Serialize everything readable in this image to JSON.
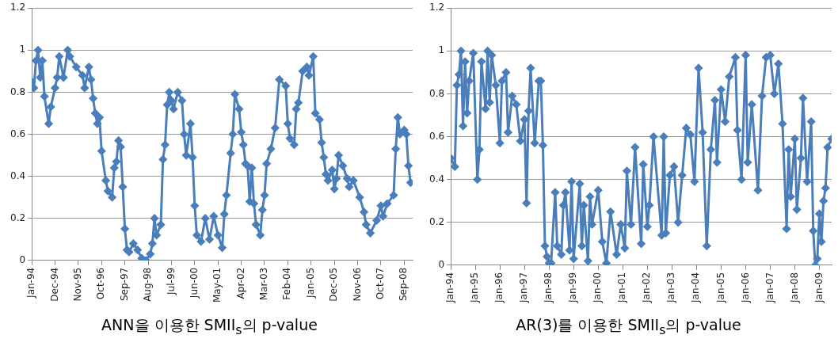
{
  "chart_data": [
    {
      "type": "line",
      "title": "ANN을 이용한 SMII$_{s}$의 p-value",
      "marker": "diamond",
      "grid": "y",
      "line_style": "solid",
      "ylim": [
        0,
        1.2
      ],
      "yticks": [
        0,
        0.2,
        0.4,
        0.6,
        0.8,
        1,
        1.2
      ],
      "xlim": [
        "1994-01",
        "2009-01"
      ],
      "xticks": [
        {
          "value": "1994-01",
          "label": "Jan-94"
        },
        {
          "value": "1994-12",
          "label": "Dec-94"
        },
        {
          "value": "1995-11",
          "label": "Nov-95"
        },
        {
          "value": "1996-10",
          "label": "Oct-96"
        },
        {
          "value": "1997-09",
          "label": "Sep-97"
        },
        {
          "value": "1998-08",
          "label": "Aug-98"
        },
        {
          "value": "1999-07",
          "label": "Jul-99"
        },
        {
          "value": "2000-06",
          "label": "Jun-00"
        },
        {
          "value": "2001-05",
          "label": "May-01"
        },
        {
          "value": "2002-04",
          "label": "Apr-02"
        },
        {
          "value": "2003-03",
          "label": "Mar-03"
        },
        {
          "value": "2004-02",
          "label": "Feb-04"
        },
        {
          "value": "2005-01",
          "label": "Jan-05"
        },
        {
          "value": "2005-12",
          "label": "Dec-05"
        },
        {
          "value": "2006-11",
          "label": "Nov-06"
        },
        {
          "value": "2007-10",
          "label": "Oct-07"
        },
        {
          "value": "2008-09",
          "label": "Sep-08"
        }
      ],
      "series": [
        {
          "color": "#4a7ebb",
          "x": [
            "1994-01",
            "1994-02",
            "1994-03",
            "1994-04",
            "1994-05",
            "1994-06",
            "1994-07",
            "1994-09",
            "1994-10",
            "1994-12",
            "1995-01",
            "1995-02",
            "1995-04",
            "1995-06",
            "1995-07",
            "1995-10",
            "1996-01",
            "1996-02",
            "1996-04",
            "1996-05",
            "1996-06",
            "1996-07",
            "1996-08",
            "1996-09",
            "1996-10",
            "1996-12",
            "1997-01",
            "1997-03",
            "1997-04",
            "1997-05",
            "1997-06",
            "1997-07",
            "1997-08",
            "1997-09",
            "1997-10",
            "1997-11",
            "1998-01",
            "1998-03",
            "1998-05",
            "1998-07",
            "1998-09",
            "1998-10",
            "1998-11",
            "1998-12",
            "1999-02",
            "1999-03",
            "1999-04",
            "1999-05",
            "1999-06",
            "1999-07",
            "1999-08",
            "1999-10",
            "1999-12",
            "2000-01",
            "2000-02",
            "2000-04",
            "2000-05",
            "2000-06",
            "2000-07",
            "2000-09",
            "2000-11",
            "2001-01",
            "2001-03",
            "2001-05",
            "2001-07",
            "2001-08",
            "2001-09",
            "2001-11",
            "2001-12",
            "2002-01",
            "2002-03",
            "2002-04",
            "2002-05",
            "2002-06",
            "2002-07",
            "2002-08",
            "2002-09",
            "2002-10",
            "2002-11",
            "2003-01",
            "2003-02",
            "2003-03",
            "2003-04",
            "2003-06",
            "2003-08",
            "2003-10",
            "2004-01",
            "2004-02",
            "2004-03",
            "2004-05",
            "2004-06",
            "2004-07",
            "2004-09",
            "2004-11",
            "2004-12",
            "2005-02",
            "2005-03",
            "2005-05",
            "2005-06",
            "2005-07",
            "2005-08",
            "2005-09",
            "2005-11",
            "2005-12",
            "2006-01",
            "2006-02",
            "2006-04",
            "2006-06",
            "2006-07",
            "2006-09",
            "2006-12",
            "2007-02",
            "2007-03",
            "2007-05",
            "2007-08",
            "2007-10",
            "2007-11",
            "2008-01",
            "2008-04",
            "2008-05",
            "2008-06",
            "2008-07",
            "2008-09",
            "2008-10",
            "2008-11",
            "2008-12"
          ],
          "values": [
            0.85,
            0.82,
            0.95,
            1.0,
            0.87,
            0.95,
            0.78,
            0.65,
            0.73,
            0.82,
            0.87,
            0.97,
            0.87,
            1.0,
            0.97,
            0.92,
            0.88,
            0.82,
            0.92,
            0.86,
            0.77,
            0.7,
            0.65,
            0.68,
            0.52,
            0.38,
            0.33,
            0.3,
            0.44,
            0.47,
            0.57,
            0.54,
            0.35,
            0.15,
            0.05,
            0.04,
            0.08,
            0.05,
            0.01,
            0.0,
            0.03,
            0.08,
            0.2,
            0.12,
            0.17,
            0.48,
            0.55,
            0.74,
            0.8,
            0.76,
            0.72,
            0.8,
            0.76,
            0.6,
            0.5,
            0.65,
            0.49,
            0.26,
            0.12,
            0.09,
            0.2,
            0.1,
            0.21,
            0.12,
            0.06,
            0.22,
            0.31,
            0.51,
            0.6,
            0.79,
            0.72,
            0.61,
            0.55,
            0.46,
            0.45,
            0.28,
            0.44,
            0.27,
            0.17,
            0.12,
            0.24,
            0.31,
            0.46,
            0.53,
            0.63,
            0.86,
            0.83,
            0.65,
            0.58,
            0.55,
            0.72,
            0.75,
            0.9,
            0.92,
            0.88,
            0.97,
            0.7,
            0.67,
            0.56,
            0.49,
            0.41,
            0.38,
            0.43,
            0.34,
            0.39,
            0.5,
            0.45,
            0.39,
            0.35,
            0.38,
            0.3,
            0.23,
            0.17,
            0.13,
            0.19,
            0.26,
            0.21,
            0.27,
            0.31,
            0.53,
            0.68,
            0.6,
            0.62,
            0.6,
            0.45,
            0.37
          ]
        }
      ]
    },
    {
      "type": "line",
      "title": "AR(3)를 이용한 SMII$_{s}$의 p-value",
      "marker": "diamond",
      "grid": "y",
      "line_style": "solid",
      "ylim": [
        0,
        1.2
      ],
      "yticks": [
        0,
        0.2,
        0.4,
        0.6,
        0.8,
        1,
        1.2
      ],
      "xlim": [
        "1994-01",
        "2009-07"
      ],
      "xticks": [
        {
          "value": "1994-01",
          "label": "Jan-94"
        },
        {
          "value": "1995-01",
          "label": "Jan-95"
        },
        {
          "value": "1996-01",
          "label": "Jan-96"
        },
        {
          "value": "1997-01",
          "label": "Jan-97"
        },
        {
          "value": "1998-01",
          "label": "Jan-98"
        },
        {
          "value": "1999-01",
          "label": "Jan-99"
        },
        {
          "value": "2000-01",
          "label": "Jan-00"
        },
        {
          "value": "2001-01",
          "label": "Jan-01"
        },
        {
          "value": "2002-01",
          "label": "Jan-02"
        },
        {
          "value": "2003-01",
          "label": "Jan-03"
        },
        {
          "value": "2004-01",
          "label": "Jan-04"
        },
        {
          "value": "2005-01",
          "label": "Jan-05"
        },
        {
          "value": "2006-01",
          "label": "Jan-06"
        },
        {
          "value": "2007-01",
          "label": "Jan-07"
        },
        {
          "value": "2008-01",
          "label": "Jan-08"
        },
        {
          "value": "2009-01",
          "label": "Jan-09"
        }
      ],
      "series": [
        {
          "color": "#4a7ebb",
          "x": [
            "1994-01",
            "1994-03",
            "1994-04",
            "1994-05",
            "1994-06",
            "1994-07",
            "1994-08",
            "1994-09",
            "1994-10",
            "1994-12",
            "1995-02",
            "1995-03",
            "1995-04",
            "1995-06",
            "1995-07",
            "1995-08",
            "1995-09",
            "1995-11",
            "1996-01",
            "1996-02",
            "1996-04",
            "1996-05",
            "1996-07",
            "1996-09",
            "1996-11",
            "1997-01",
            "1997-02",
            "1997-03",
            "1997-04",
            "1997-06",
            "1997-08",
            "1997-09",
            "1997-10",
            "1997-11",
            "1997-12",
            "1998-01",
            "1998-02",
            "1998-04",
            "1998-05",
            "1998-07",
            "1998-08",
            "1998-09",
            "1998-11",
            "1998-12",
            "1999-01",
            "1999-04",
            "1999-05",
            "1999-06",
            "1999-08",
            "1999-09",
            "1999-10",
            "2000-01",
            "2000-03",
            "2000-05",
            "2000-07",
            "2000-10",
            "2000-12",
            "2001-02",
            "2001-03",
            "2001-05",
            "2001-07",
            "2001-10",
            "2001-11",
            "2002-01",
            "2002-02",
            "2002-04",
            "2002-08",
            "2002-09",
            "2002-10",
            "2002-12",
            "2003-02",
            "2003-04",
            "2003-06",
            "2003-08",
            "2003-10",
            "2003-12",
            "2004-02",
            "2004-04",
            "2004-06",
            "2004-08",
            "2004-10",
            "2004-11",
            "2005-01",
            "2005-03",
            "2005-05",
            "2005-08",
            "2005-09",
            "2005-11",
            "2006-01",
            "2006-02",
            "2006-04",
            "2006-07",
            "2006-09",
            "2006-11",
            "2007-01",
            "2007-03",
            "2007-05",
            "2007-07",
            "2007-09",
            "2007-10",
            "2007-11",
            "2008-01",
            "2008-02",
            "2008-04",
            "2008-05",
            "2008-07",
            "2008-09",
            "2008-10",
            "2008-11",
            "2008-12",
            "2009-01",
            "2009-02",
            "2009-03",
            "2009-04",
            "2009-05",
            "2009-07"
          ],
          "values": [
            0.5,
            0.46,
            0.84,
            0.89,
            1.0,
            0.65,
            0.95,
            0.71,
            0.86,
            0.99,
            0.4,
            0.54,
            0.95,
            0.73,
            1.0,
            0.76,
            0.98,
            0.84,
            0.57,
            0.86,
            0.9,
            0.62,
            0.79,
            0.75,
            0.58,
            0.68,
            0.29,
            0.72,
            0.92,
            0.57,
            0.86,
            0.86,
            0.56,
            0.09,
            0.04,
            0.01,
            0.01,
            0.34,
            0.09,
            0.05,
            0.28,
            0.34,
            0.07,
            0.39,
            0.03,
            0.38,
            0.09,
            0.28,
            0.02,
            0.32,
            0.19,
            0.35,
            0.11,
            0.01,
            0.25,
            0.05,
            0.19,
            0.08,
            0.44,
            0.19,
            0.55,
            0.1,
            0.47,
            0.18,
            0.28,
            0.6,
            0.14,
            0.6,
            0.15,
            0.42,
            0.46,
            0.2,
            0.42,
            0.64,
            0.61,
            0.39,
            0.92,
            0.62,
            0.09,
            0.54,
            0.77,
            0.48,
            0.82,
            0.67,
            0.88,
            0.97,
            0.63,
            0.4,
            0.98,
            0.48,
            0.75,
            0.35,
            0.79,
            0.97,
            0.98,
            0.8,
            0.94,
            0.66,
            0.17,
            0.54,
            0.32,
            0.59,
            0.26,
            0.5,
            0.78,
            0.39,
            0.67,
            0.16,
            0.0,
            0.03,
            0.24,
            0.11,
            0.3,
            0.36,
            0.55,
            0.59
          ]
        }
      ]
    }
  ]
}
